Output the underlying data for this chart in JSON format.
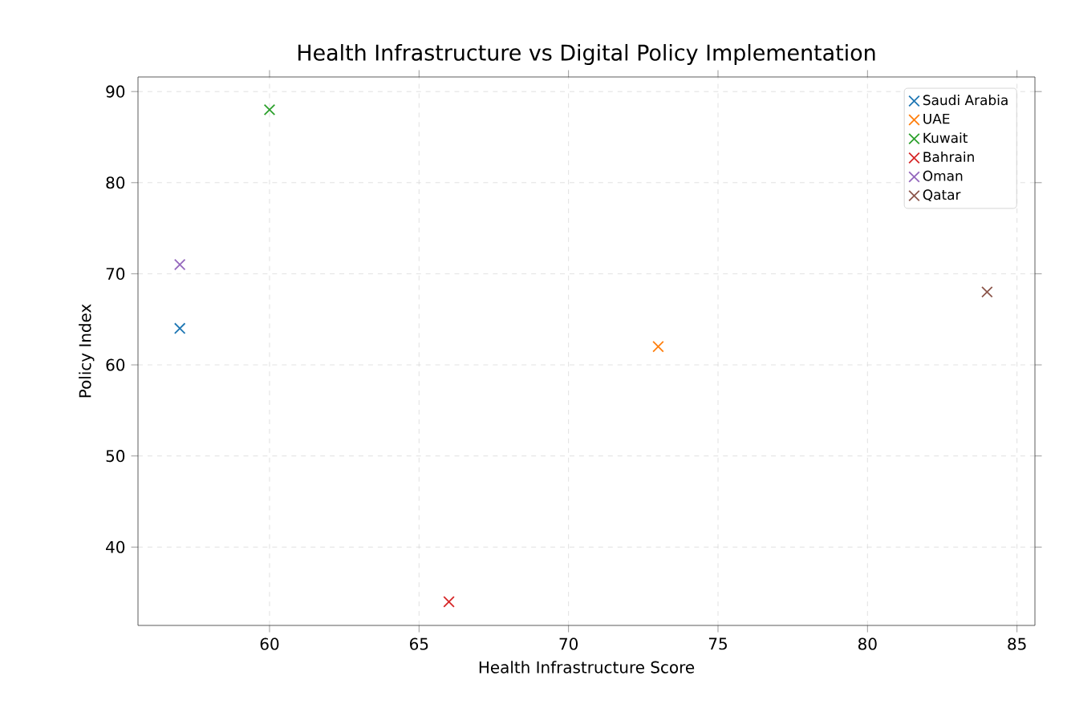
{
  "chart_data": {
    "type": "scatter",
    "title": "Health Infrastructure vs Digital Policy Implementation",
    "xlabel": "Health Infrastructure Score",
    "ylabel": "Policy Index",
    "xlim": [
      55.6,
      85.6
    ],
    "ylim": [
      31.4,
      91.6
    ],
    "xticks": [
      60,
      65,
      70,
      75,
      80,
      85
    ],
    "yticks": [
      40,
      50,
      60,
      70,
      80,
      90
    ],
    "grid": true,
    "legend": "top right",
    "marker": "cross",
    "series": [
      {
        "name": "Saudi Arabia",
        "color": "#1f77b4",
        "x": [
          57
        ],
        "values": [
          64
        ]
      },
      {
        "name": "UAE",
        "color": "#ff7f0e",
        "x": [
          73
        ],
        "values": [
          62
        ]
      },
      {
        "name": "Kuwait",
        "color": "#2ca02c",
        "x": [
          60
        ],
        "values": [
          88
        ]
      },
      {
        "name": "Bahrain",
        "color": "#d62728",
        "x": [
          66
        ],
        "values": [
          34
        ]
      },
      {
        "name": "Oman",
        "color": "#9467bd",
        "x": [
          57
        ],
        "values": [
          71
        ]
      },
      {
        "name": "Qatar",
        "color": "#8c564b",
        "x": [
          84
        ],
        "values": [
          68
        ]
      }
    ]
  }
}
